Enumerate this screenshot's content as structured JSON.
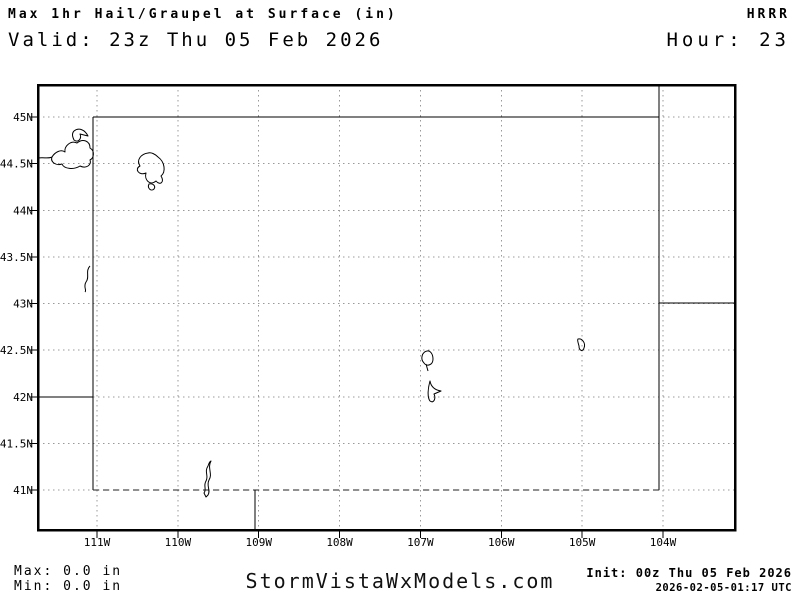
{
  "header": {
    "title": "Max 1hr Hail/Graupel at Surface (in)",
    "valid": "Valid: 23z Thu 05 Feb 2026",
    "model": "HRRR",
    "hour": "Hour: 23"
  },
  "footer": {
    "max": "Max: 0.0 in",
    "min": "Min: 0.0 in",
    "site": "StormVistaWxModels.com",
    "init": "Init: 00z Thu 05 Feb 2026",
    "gen_time": "2026-02-05-01:17 UTC"
  },
  "chart_data": {
    "type": "map",
    "title": "Max 1hr Hail/Graupel at Surface (in)",
    "model": "HRRR",
    "region": "Wyoming",
    "valid_time": "23z Thu 05 Feb 2026",
    "init_time": "00z Thu 05 Feb 2026",
    "forecast_hour": 23,
    "unit": "in",
    "field_max": 0.0,
    "field_min": 0.0,
    "shaded_values": "none - field is 0.0 everywhere, map shows only basemap outlines",
    "lat_ticks": [
      "45N",
      "44.5N",
      "44N",
      "43.5N",
      "43N",
      "42.5N",
      "42N",
      "41.5N",
      "41N"
    ],
    "lon_ticks": [
      "111W",
      "110W",
      "109W",
      "108W",
      "107W",
      "106W",
      "105W",
      "104W"
    ],
    "lat_range": [
      40.57,
      45.34
    ],
    "lon_range": [
      111.73,
      103.11
    ],
    "grid": "dashed gray at every tick",
    "map_features": [
      "wyoming-state-border",
      "utah-idaho-border-stub-42N",
      "southdakota-nebraska-border-stub-43N",
      "montana-dakota-border-stub-104W",
      "utah-colorado-border-stub-109W",
      "lake-outlines-yellowstone-area",
      "lake-outline-palisades",
      "lake-outline-pathfinder",
      "lake-outline-seminoe",
      "lake-outline-glendo",
      "reservoir-outline-flaming-gorge"
    ],
    "colors": {
      "background": "#ffffff",
      "frame": "#000000",
      "gridline": "#999999",
      "map_lines": "#000000",
      "text": "#000000"
    }
  }
}
